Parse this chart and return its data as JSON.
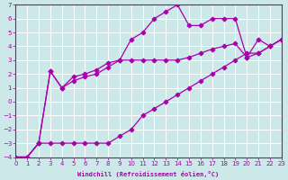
{
  "xlabel": "Windchill (Refroidissement éolien,°C)",
  "xlim": [
    0,
    23
  ],
  "ylim": [
    -4,
    7
  ],
  "bg_color": "#cce8e8",
  "grid_color": "#ffffff",
  "line_color": "#aa00aa",
  "line1_x": [
    0,
    1,
    2,
    3,
    4,
    5,
    6,
    7,
    8,
    9,
    10,
    11,
    12,
    13,
    14,
    15,
    16,
    17,
    18,
    19,
    20,
    21,
    22,
    23
  ],
  "line1_y": [
    -4,
    -4,
    -3,
    -3,
    -3,
    -3,
    -3,
    -3,
    -3,
    -2.5,
    -2,
    -1,
    -0.5,
    0,
    0.5,
    1,
    1.5,
    2,
    2.5,
    3,
    3.5,
    3.5,
    4,
    4.5
  ],
  "line2_x": [
    0,
    1,
    2,
    3,
    4,
    5,
    6,
    7,
    8,
    9,
    10,
    11,
    12,
    13,
    14,
    15,
    16,
    17,
    18,
    19,
    20,
    21,
    22,
    23
  ],
  "line2_y": [
    -4,
    -4,
    -3,
    2.2,
    1.0,
    1.8,
    2.0,
    2.3,
    2.8,
    3.0,
    4.5,
    5.0,
    6.0,
    6.5,
    7.0,
    5.5,
    5.5,
    6.0,
    6.0,
    6.0,
    3.2,
    4.5,
    4.0,
    4.5
  ],
  "line3_x": [
    0,
    1,
    2,
    3,
    4,
    5,
    6,
    7,
    8,
    9,
    10,
    11,
    12,
    13,
    14,
    15,
    16,
    17,
    18,
    19,
    20,
    21,
    22,
    23
  ],
  "line3_y": [
    -4,
    -4,
    -3,
    2.2,
    1.0,
    1.5,
    1.8,
    2.0,
    2.5,
    3.0,
    3.0,
    3.0,
    3.0,
    3.0,
    3.0,
    3.2,
    3.5,
    3.8,
    4.0,
    4.2,
    3.2,
    3.5,
    4.0,
    4.5
  ],
  "marker": "D",
  "marker_size": 2.5,
  "line_width": 0.9
}
